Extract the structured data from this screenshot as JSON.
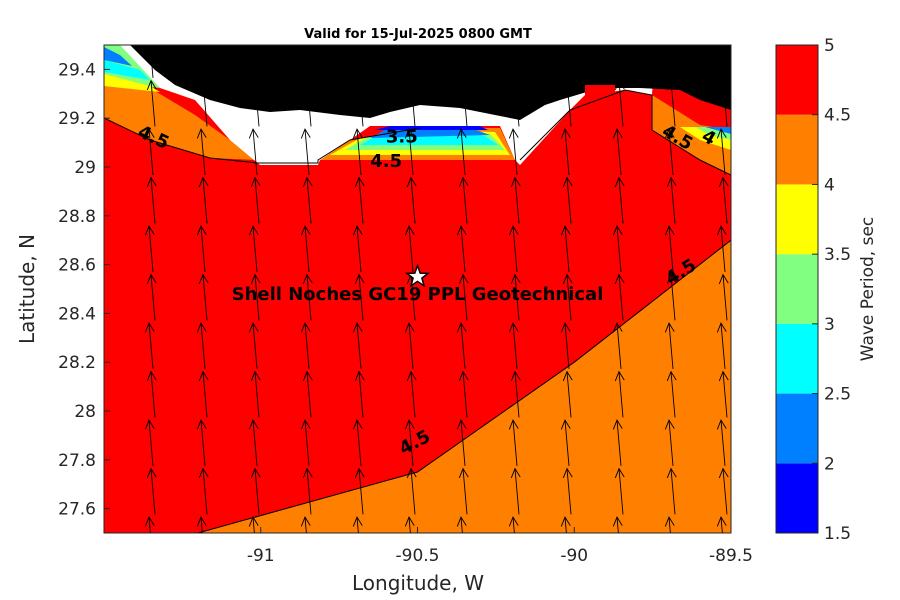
{
  "chart_data": {
    "type": "map",
    "title": "Valid for 15-Jul-2025 0800 GMT",
    "xlabel": "Longitude, W",
    "ylabel": "Latitude, N",
    "xlim": [
      -91.5,
      -89.5
    ],
    "ylim": [
      27.5,
      29.5
    ],
    "x_ticks": [
      {
        "value": -91,
        "label": "-91"
      },
      {
        "value": -90.5,
        "label": "-90.5"
      },
      {
        "value": -90,
        "label": "-90"
      },
      {
        "value": -89.5,
        "label": "-89.5"
      }
    ],
    "y_ticks": [
      {
        "value": 27.6,
        "label": "27.6"
      },
      {
        "value": 27.8,
        "label": "27.8"
      },
      {
        "value": 28,
        "label": "28"
      },
      {
        "value": 28.2,
        "label": "28.2"
      },
      {
        "value": 28.4,
        "label": "28.4"
      },
      {
        "value": 28.6,
        "label": "28.6"
      },
      {
        "value": 28.8,
        "label": "28.8"
      },
      {
        "value": 29,
        "label": "29"
      },
      {
        "value": 29.2,
        "label": "29.2"
      },
      {
        "value": 29.4,
        "label": "29.4"
      }
    ],
    "colorbar": {
      "label": "Wave Period, sec",
      "range": [
        1.5,
        5
      ],
      "levels": [
        1.5,
        2,
        2.5,
        3,
        3.5,
        4,
        4.5,
        5
      ],
      "tick_labels": [
        "1.5",
        "2",
        "2.5",
        "3",
        "3.5",
        "4",
        "4.5",
        "5"
      ],
      "colors": [
        "#0000ff",
        "#0080ff",
        "#00ffff",
        "#80ff80",
        "#ffff00",
        "#ff8000",
        "#ff0000"
      ]
    },
    "field_colors": {
      "period_4_to_4_5": "#ff8000",
      "period_4_5_to_5": "#ff0000",
      "land": "#000000",
      "no_data": "#ffffff"
    },
    "contour_4_5_boundary": [
      {
        "lon": -91.2,
        "lat": 27.5
      },
      {
        "lon": -90.5,
        "lat": 27.75
      },
      {
        "lon": -90.0,
        "lat": 28.2
      },
      {
        "lon": -89.7,
        "lat": 28.5
      },
      {
        "lon": -89.5,
        "lat": 28.7
      }
    ],
    "contour_labels": [
      {
        "text": "4.5",
        "lon": -91.35,
        "lat": 29.1
      },
      {
        "text": "4.5",
        "lon": -90.6,
        "lat": 29.0
      },
      {
        "text": "4.5",
        "lon": -90.5,
        "lat": 27.85
      },
      {
        "text": "4.5",
        "lon": -89.65,
        "lat": 28.55
      },
      {
        "text": "4.5",
        "lon": -89.68,
        "lat": 29.1
      },
      {
        "text": "4",
        "lon": -89.58,
        "lat": 29.1
      },
      {
        "text": "3.5",
        "lon": -90.55,
        "lat": 29.1
      }
    ],
    "site": {
      "label": "Shell Noches   GC19 PPL  Geotechnical",
      "lon": -90.5,
      "lat": 28.55
    },
    "annotation_lat": 28.48,
    "wave_direction_deg": 355
  }
}
